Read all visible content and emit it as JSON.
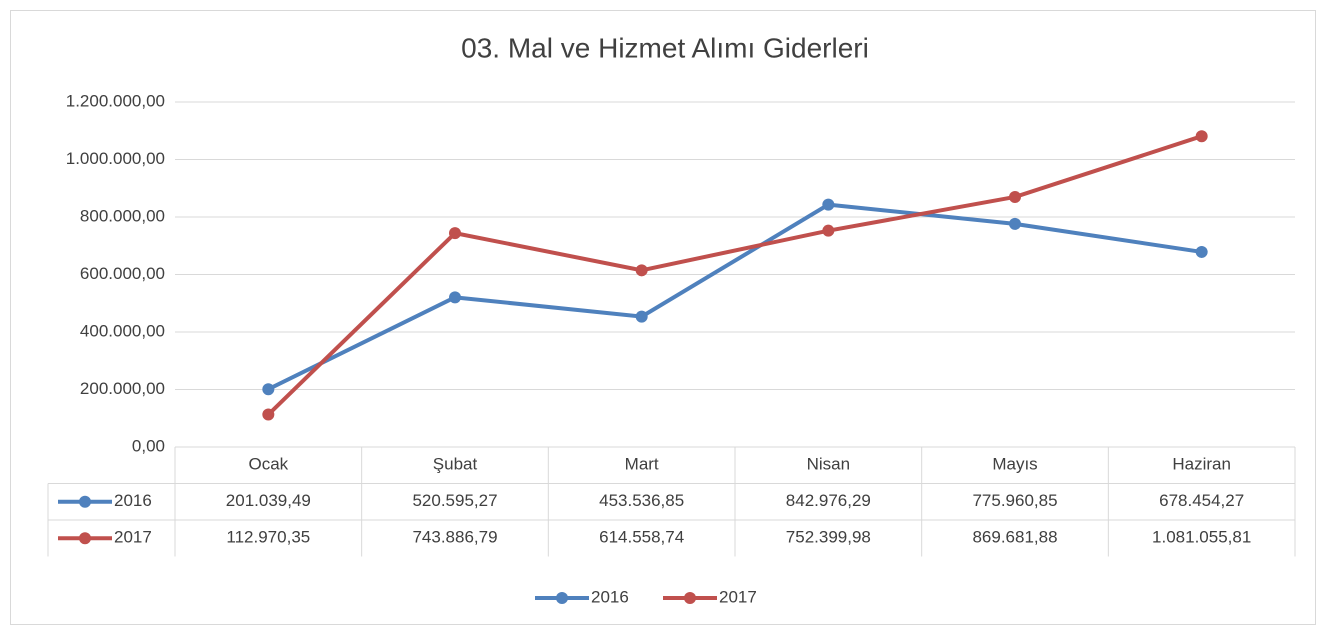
{
  "chart_data": {
    "type": "line",
    "title": "03. Mal ve Hizmet Alımı Giderleri",
    "categories": [
      "Ocak",
      "Şubat",
      "Mart",
      "Nisan",
      "Mayıs",
      "Haziran"
    ],
    "series": [
      {
        "name": "2016",
        "color": "#4f81bd",
        "values": [
          201039.49,
          520595.27,
          453536.85,
          842976.29,
          775960.85,
          678454.27
        ],
        "value_labels": [
          "201.039,49",
          "520.595,27",
          "453.536,85",
          "842.976,29",
          "775.960,85",
          "678.454,27"
        ]
      },
      {
        "name": "2017",
        "color": "#c0504d",
        "values": [
          112970.35,
          743886.79,
          614558.74,
          752399.98,
          869681.88,
          1081055.81
        ],
        "value_labels": [
          "112.970,35",
          "743.886,79",
          "614.558,74",
          "752.399,98",
          "869.681,88",
          "1.081.055,81"
        ]
      }
    ],
    "ylim": [
      0,
      1200000
    ],
    "yticks": [
      {
        "value": 0,
        "label": "0,00"
      },
      {
        "value": 200000,
        "label": "200.000,00"
      },
      {
        "value": 400000,
        "label": "400.000,00"
      },
      {
        "value": 600000,
        "label": "600.000,00"
      },
      {
        "value": 800000,
        "label": "800.000,00"
      },
      {
        "value": 1000000,
        "label": "1.000.000,00"
      },
      {
        "value": 1200000,
        "label": "1.200.000,00"
      }
    ],
    "grid": true,
    "legend": "bottom"
  }
}
